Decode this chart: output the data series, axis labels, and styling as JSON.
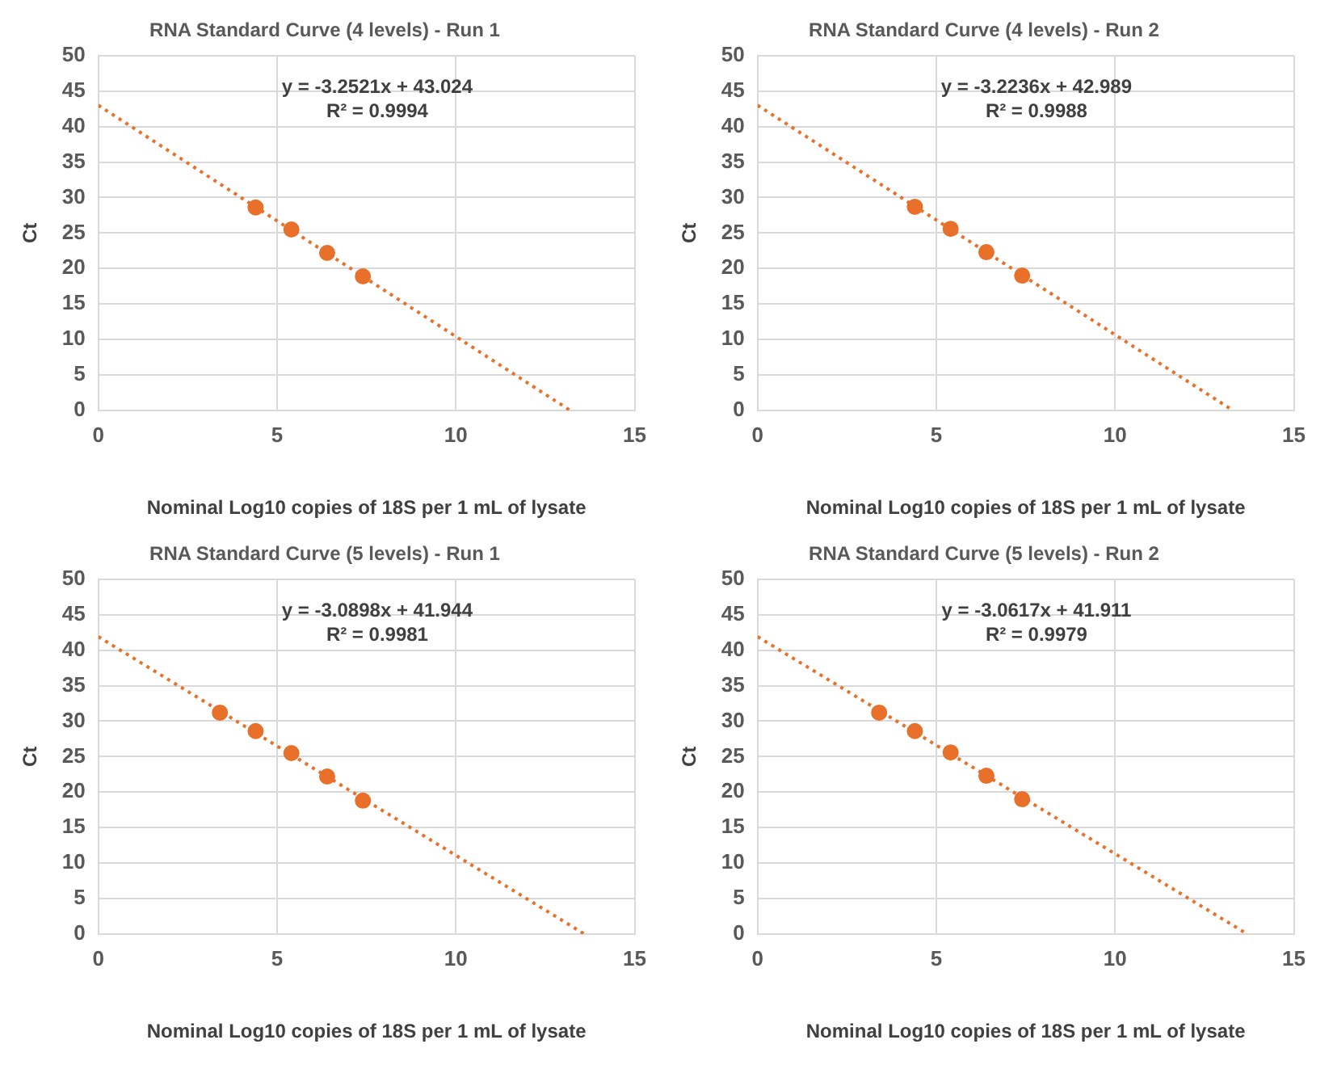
{
  "chart_data": [
    {
      "type": "scatter",
      "title": "RNA Standard Curve (4 levels) - Run 1",
      "xlabel": "Nominal Log10 copies of 18S per 1 mL of lysate",
      "ylabel": "Ct",
      "xlim": [
        0,
        15
      ],
      "xticks": [
        0,
        5,
        10,
        15
      ],
      "ylim": [
        0,
        50
      ],
      "yticks": [
        0,
        5,
        10,
        15,
        20,
        25,
        30,
        35,
        40,
        45,
        50
      ],
      "grid": true,
      "annotations": [
        "y = -3.2521x + 43.024",
        "R² = 0.9994"
      ],
      "series": [
        {
          "type": "scatter",
          "color": "#e8702a",
          "marker": "circle",
          "x": [
            4.4,
            5.4,
            6.4,
            7.4
          ],
          "values": [
            28.6,
            25.5,
            22.2,
            18.9
          ]
        },
        {
          "type": "line",
          "color": "#e8702a",
          "marker": "none",
          "line_style": "dotted",
          "x": [
            0,
            13.2
          ],
          "values": [
            43.0,
            0
          ]
        }
      ]
    },
    {
      "type": "scatter",
      "title": "RNA Standard Curve (4 levels) - Run 2",
      "xlabel": "Nominal Log10 copies of 18S per 1 mL of lysate",
      "ylabel": "Ct",
      "xlim": [
        0,
        15
      ],
      "xticks": [
        0,
        5,
        10,
        15
      ],
      "ylim": [
        0,
        50
      ],
      "yticks": [
        0,
        5,
        10,
        15,
        20,
        25,
        30,
        35,
        40,
        45,
        50
      ],
      "grid": true,
      "annotations": [
        "y = -3.2236x + 42.989",
        "R² = 0.9988"
      ],
      "series": [
        {
          "type": "scatter",
          "color": "#e8702a",
          "marker": "circle",
          "x": [
            4.4,
            5.4,
            6.4,
            7.4
          ],
          "values": [
            28.7,
            25.6,
            22.3,
            19.0
          ]
        },
        {
          "type": "line",
          "color": "#e8702a",
          "marker": "none",
          "line_style": "dotted",
          "x": [
            0,
            13.3
          ],
          "values": [
            43.0,
            0
          ]
        }
      ]
    },
    {
      "type": "scatter",
      "title": "RNA Standard Curve (5 levels) - Run 1",
      "xlabel": "Nominal Log10 copies of 18S per 1 mL of lysate",
      "ylabel": "Ct",
      "xlim": [
        0,
        15
      ],
      "xticks": [
        0,
        5,
        10,
        15
      ],
      "ylim": [
        0,
        50
      ],
      "yticks": [
        0,
        5,
        10,
        15,
        20,
        25,
        30,
        35,
        40,
        45,
        50
      ],
      "grid": true,
      "annotations": [
        "y = -3.0898x + 41.944",
        "R² = 0.9981"
      ],
      "series": [
        {
          "type": "scatter",
          "color": "#e8702a",
          "marker": "circle",
          "x": [
            3.4,
            4.4,
            5.4,
            6.4,
            7.4
          ],
          "values": [
            31.2,
            28.6,
            25.5,
            22.2,
            18.8
          ]
        },
        {
          "type": "line",
          "color": "#e8702a",
          "marker": "none",
          "line_style": "dotted",
          "x": [
            0,
            13.6
          ],
          "values": [
            41.9,
            0
          ]
        }
      ]
    },
    {
      "type": "scatter",
      "title": "RNA Standard Curve (5 levels) - Run 2",
      "xlabel": "Nominal Log10 copies of 18S per 1 mL of lysate",
      "ylabel": "Ct",
      "xlim": [
        0,
        15
      ],
      "xticks": [
        0,
        5,
        10,
        15
      ],
      "ylim": [
        0,
        50
      ],
      "yticks": [
        0,
        5,
        10,
        15,
        20,
        25,
        30,
        35,
        40,
        45,
        50
      ],
      "grid": true,
      "annotations": [
        "y = -3.0617x + 41.911",
        "R² = 0.9979"
      ],
      "series": [
        {
          "type": "scatter",
          "color": "#e8702a",
          "marker": "circle",
          "x": [
            3.4,
            4.4,
            5.4,
            6.4,
            7.4
          ],
          "values": [
            31.2,
            28.6,
            25.6,
            22.3,
            19.0
          ]
        },
        {
          "type": "line",
          "color": "#e8702a",
          "marker": "none",
          "line_style": "dotted",
          "x": [
            0,
            13.7
          ],
          "values": [
            41.9,
            0
          ]
        }
      ]
    }
  ]
}
